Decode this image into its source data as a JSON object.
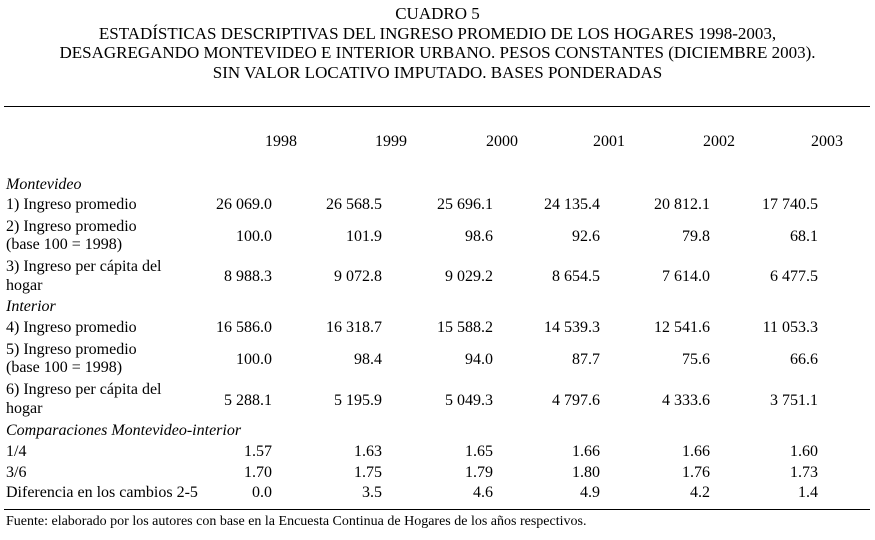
{
  "title": {
    "line1": "CUADRO 5",
    "line2": "ESTADÍSTICAS DESCRIPTIVAS DEL INGRESO PROMEDIO DE LOS HOGARES 1998-2003,",
    "line3": "DESAGREGANDO MONTEVIDEO E INTERIOR URBANO. PESOS CONSTANTES (DICIEMBRE 2003).",
    "line4": "SIN VALOR LOCATIVO IMPUTADO. BASES PONDERADAS"
  },
  "years": [
    "1998",
    "1999",
    "2000",
    "2001",
    "2002",
    "2003"
  ],
  "sections": {
    "montevideo": "Montevideo",
    "interior": "Interior",
    "comparaciones": "Comparaciones Montevideo-interior"
  },
  "rows": [
    {
      "label": [
        "1) Ingreso promedio"
      ],
      "values": [
        "26 069.0",
        "26 568.5",
        "25 696.1",
        "24 135.4",
        "20 812.1",
        "17 740.5"
      ]
    },
    {
      "label": [
        "2) Ingreso promedio",
        "(base 100 = 1998)"
      ],
      "values": [
        "100.0",
        "101.9",
        "98.6",
        "92.6",
        "79.8",
        "68.1"
      ]
    },
    {
      "label": [
        "3) Ingreso per cápita del",
        "hogar"
      ],
      "values": [
        "8 988.3",
        "9 072.8",
        "9 029.2",
        "8 654.5",
        "7 614.0",
        "6 477.5"
      ]
    },
    {
      "label": [
        "4) Ingreso promedio"
      ],
      "values": [
        "16 586.0",
        "16 318.7",
        "15 588.2",
        "14 539.3",
        "12 541.6",
        "11 053.3"
      ]
    },
    {
      "label": [
        "5) Ingreso promedio",
        "(base 100 = 1998)"
      ],
      "values": [
        "100.0",
        "98.4",
        "94.0",
        "87.7",
        "75.6",
        "66.6"
      ]
    },
    {
      "label": [
        "6) Ingreso per cápita del",
        "hogar"
      ],
      "values": [
        "5 288.1",
        "5 195.9",
        "5 049.3",
        "4 797.6",
        "4 333.6",
        "3 751.1"
      ]
    },
    {
      "label": [
        "1/4"
      ],
      "values": [
        "1.57",
        "1.63",
        "1.65",
        "1.66",
        "1.66",
        "1.60"
      ]
    },
    {
      "label": [
        "3/6"
      ],
      "values": [
        "1.70",
        "1.75",
        "1.79",
        "1.80",
        "1.76",
        "1.73"
      ]
    },
    {
      "label": [
        "Diferencia en los cambios 2-5"
      ],
      "values": [
        "0.0",
        "3.5",
        "4.6",
        "4.9",
        "4.2",
        "1.4"
      ]
    }
  ],
  "source": "Fuente: elaborado por los autores con base en la Encuesta Continua de Hogares de los años respectivos."
}
